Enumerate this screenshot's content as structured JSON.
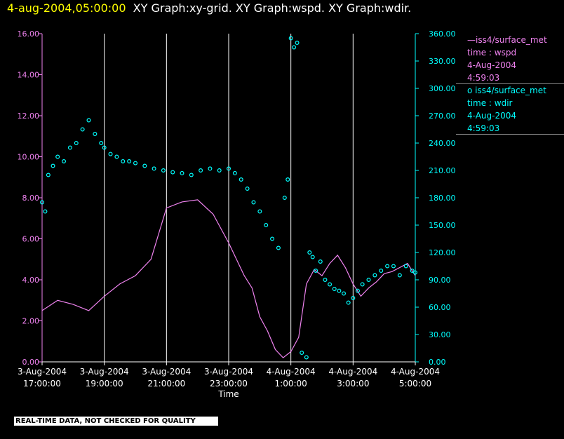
{
  "title": {
    "date": "4-aug-2004,05:00:00",
    "graphs": "XY Graph:xy-grid.  XY Graph:wspd.  XY Graph:wdir."
  },
  "legend": [
    {
      "marker": "—",
      "source": "iss4/surface_met",
      "variable": "time : wspd",
      "date": "4-Aug-2004",
      "time": "4:59:03",
      "color": "#ee82ee"
    },
    {
      "marker": "o",
      "source": "iss4/surface_met",
      "variable": "time : wdir",
      "date": "4-Aug-2004",
      "time": "4:59:03",
      "color": "#00ffff"
    }
  ],
  "quality_note": "REAL-TIME DATA, NOT CHECKED FOR QUALITY",
  "chart_data": {
    "type": "line",
    "xlabel": "Time",
    "x_range_hours": [
      17,
      29
    ],
    "x_ticks": [
      {
        "hour": 17,
        "date": "3-Aug-2004",
        "time": "17:00:00"
      },
      {
        "hour": 19,
        "date": "3-Aug-2004",
        "time": "19:00:00"
      },
      {
        "hour": 21,
        "date": "3-Aug-2004",
        "time": "21:00:00"
      },
      {
        "hour": 23,
        "date": "3-Aug-2004",
        "time": "23:00:00"
      },
      {
        "hour": 25,
        "date": "4-Aug-2004",
        "time": "1:00:00"
      },
      {
        "hour": 27,
        "date": "4-Aug-2004",
        "time": "3:00:00"
      },
      {
        "hour": 29,
        "date": "4-Aug-2004",
        "time": "5:00:00"
      }
    ],
    "grid_vertical": true,
    "left_axis": {
      "series": "wspd",
      "color": "#ee82ee",
      "ylim": [
        0,
        16
      ],
      "ticks": [
        "0.00",
        "2.00",
        "4.00",
        "6.00",
        "8.00",
        "10.00",
        "12.00",
        "14.00",
        "16.00"
      ]
    },
    "right_axis": {
      "series": "wdir",
      "color": "#00ffff",
      "ylim": [
        0,
        360
      ],
      "ticks": [
        "0.00",
        "30.00",
        "60.00",
        "90.00",
        "120.00",
        "150.00",
        "180.00",
        "210.00",
        "240.00",
        "270.00",
        "300.00",
        "330.00",
        "360.00"
      ]
    },
    "series": [
      {
        "name": "wspd",
        "style": "line",
        "axis": "left",
        "color": "#ee82ee",
        "x": [
          17.0,
          17.5,
          18.0,
          18.5,
          19.0,
          19.5,
          20.0,
          20.5,
          21.0,
          21.5,
          22.0,
          22.5,
          23.0,
          23.25,
          23.5,
          23.75,
          24.0,
          24.25,
          24.5,
          24.75,
          25.0,
          25.25,
          25.5,
          25.75,
          26.0,
          26.25,
          26.5,
          26.75,
          27.0,
          27.25,
          27.5,
          27.75,
          28.0,
          28.25,
          28.5,
          28.75,
          29.0
        ],
        "values": [
          2.5,
          3.0,
          2.8,
          2.5,
          3.2,
          3.8,
          4.2,
          5.0,
          7.5,
          7.8,
          7.9,
          7.2,
          5.8,
          5.0,
          4.2,
          3.6,
          2.2,
          1.5,
          0.6,
          0.2,
          0.5,
          1.2,
          3.8,
          4.5,
          4.2,
          4.8,
          5.2,
          4.6,
          3.8,
          3.2,
          3.6,
          3.9,
          4.3,
          4.4,
          4.6,
          4.8,
          4.2
        ]
      },
      {
        "name": "wdir",
        "style": "scatter",
        "axis": "right",
        "color": "#00ffff",
        "x": [
          17.0,
          17.1,
          17.2,
          17.35,
          17.5,
          17.7,
          17.9,
          18.1,
          18.3,
          18.5,
          18.7,
          18.9,
          19.0,
          19.2,
          19.4,
          19.6,
          19.8,
          20.0,
          20.3,
          20.6,
          20.9,
          21.2,
          21.5,
          21.8,
          22.1,
          22.4,
          22.7,
          23.0,
          23.2,
          23.4,
          23.6,
          23.8,
          24.0,
          24.2,
          24.4,
          24.6,
          24.8,
          24.9,
          25.0,
          25.1,
          25.2,
          25.35,
          25.5,
          25.6,
          25.7,
          25.8,
          25.95,
          26.1,
          26.25,
          26.4,
          26.55,
          26.7,
          26.85,
          27.0,
          27.15,
          27.3,
          27.5,
          27.7,
          27.9,
          28.1,
          28.3,
          28.5,
          28.7,
          28.9,
          29.0
        ],
        "values": [
          175,
          165,
          205,
          215,
          225,
          220,
          235,
          240,
          255,
          265,
          250,
          240,
          235,
          228,
          225,
          220,
          220,
          218,
          215,
          212,
          210,
          208,
          207,
          205,
          210,
          212,
          210,
          212,
          207,
          200,
          190,
          175,
          165,
          150,
          135,
          125,
          180,
          200,
          355,
          345,
          350,
          10,
          5,
          120,
          115,
          100,
          110,
          90,
          85,
          80,
          78,
          75,
          65,
          70,
          78,
          85,
          90,
          95,
          100,
          105,
          105,
          95,
          105,
          100,
          98
        ]
      }
    ]
  }
}
